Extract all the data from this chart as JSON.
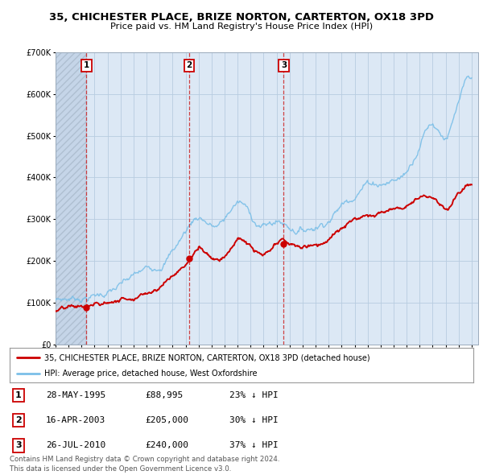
{
  "title": "35, CHICHESTER PLACE, BRIZE NORTON, CARTERTON, OX18 3PD",
  "subtitle": "Price paid vs. HM Land Registry's House Price Index (HPI)",
  "ylim": [
    0,
    700000
  ],
  "yticks": [
    0,
    100000,
    200000,
    300000,
    400000,
    500000,
    600000,
    700000
  ],
  "xlim_start": 1993,
  "xlim_end": 2025.5,
  "sale_dates": [
    1995.38,
    2003.29,
    2010.55
  ],
  "sale_prices": [
    88995,
    205000,
    240000
  ],
  "sale_labels": [
    "1",
    "2",
    "3"
  ],
  "hpi_color": "#7bbfe8",
  "price_color": "#cc0000",
  "dashed_line_color": "#cc2222",
  "legend_price_label": "35, CHICHESTER PLACE, BRIZE NORTON, CARTERTON, OX18 3PD (detached house)",
  "legend_hpi_label": "HPI: Average price, detached house, West Oxfordshire",
  "table_data": [
    [
      "1",
      "28-MAY-1995",
      "£88,995",
      "23% ↓ HPI"
    ],
    [
      "2",
      "16-APR-2003",
      "£205,000",
      "30% ↓ HPI"
    ],
    [
      "3",
      "26-JUL-2010",
      "£240,000",
      "37% ↓ HPI"
    ]
  ],
  "footnote": "Contains HM Land Registry data © Crown copyright and database right 2024.\nThis data is licensed under the Open Government Licence v3.0.",
  "background_color": "#ffffff",
  "plot_bg_color": "#dce8f5",
  "hatch_area_color": "#c5d5e8",
  "grid_color": "#b8cce0"
}
